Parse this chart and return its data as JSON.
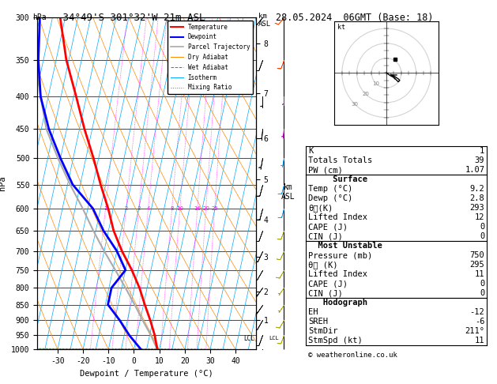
{
  "title_left": "-34°49'S 301°32'W 21m ASL",
  "title_right": "28.05.2024  06GMT (Base: 18)",
  "xlabel": "Dewpoint / Temperature (°C)",
  "ylabel_left": "hPa",
  "ylabel_km": "km\nASL",
  "bg_color": "#ffffff",
  "pressure_levels": [
    300,
    350,
    400,
    450,
    500,
    550,
    600,
    650,
    700,
    750,
    800,
    850,
    900,
    950,
    1000
  ],
  "temp_ticks": [
    -30,
    -20,
    -10,
    0,
    10,
    20,
    30,
    40
  ],
  "pressure_min": 300,
  "pressure_max": 1000,
  "isotherm_color": "#00aaff",
  "dry_adiabat_color": "#ff8800",
  "wet_adiabat_color": "#00bb00",
  "mixing_ratio_color": "#ff00ff",
  "temperature_color": "#ff0000",
  "dewpoint_color": "#0000ff",
  "parcel_color": "#aaaaaa",
  "temperature_data": {
    "pressure": [
      1000,
      950,
      900,
      850,
      800,
      750,
      700,
      650,
      600,
      550,
      500,
      450,
      400,
      350,
      300
    ],
    "temp": [
      9.2,
      7.0,
      4.0,
      0.5,
      -3.0,
      -7.5,
      -13.0,
      -18.0,
      -22.0,
      -27.0,
      -32.0,
      -38.0,
      -44.0,
      -51.0,
      -57.0
    ]
  },
  "dewpoint_data": {
    "pressure": [
      1000,
      950,
      900,
      850,
      800,
      750,
      700,
      650,
      600,
      550,
      500,
      450,
      400,
      350,
      300
    ],
    "temp": [
      2.8,
      -3.0,
      -8.0,
      -14.0,
      -14.0,
      -10.0,
      -15.0,
      -22.0,
      -28.0,
      -38.0,
      -45.0,
      -52.0,
      -58.0,
      -62.0,
      -65.0
    ]
  },
  "parcel_data": {
    "pressure": [
      1000,
      950,
      900,
      850,
      800,
      750,
      700,
      650,
      600,
      550,
      500,
      450,
      400,
      350,
      300
    ],
    "temp": [
      9.2,
      5.5,
      1.0,
      -3.5,
      -8.5,
      -14.0,
      -20.0,
      -26.0,
      -32.0,
      -39.0,
      -46.0,
      -53.0,
      -58.0,
      -63.0,
      -68.0
    ]
  },
  "lcl_pressure": 960,
  "mixing_ratio_lines": [
    1,
    2,
    3,
    4,
    8,
    10,
    16,
    20,
    25
  ],
  "mixing_ratio_labels": [
    "1",
    "2",
    "3",
    "4",
    "8",
    "10",
    "16",
    "20",
    "25"
  ],
  "km_ticks": [
    1,
    2,
    3,
    4,
    5,
    6,
    7,
    8
  ],
  "km_pressures": [
    900,
    810,
    715,
    625,
    540,
    465,
    395,
    330
  ],
  "wind_pressure": [
    1000,
    950,
    900,
    850,
    800,
    750,
    700,
    650,
    600,
    550,
    500,
    450,
    400,
    350,
    300
  ],
  "wind_speed_kt": [
    10,
    10,
    8,
    7,
    7,
    10,
    12,
    10,
    8,
    8,
    7,
    6,
    5,
    8,
    12
  ],
  "wind_dir_deg": [
    200,
    200,
    210,
    215,
    215,
    210,
    205,
    200,
    195,
    195,
    190,
    185,
    180,
    200,
    220
  ],
  "hodo_u": [
    0,
    3,
    5,
    7,
    8,
    9,
    8,
    5,
    3
  ],
  "hodo_v": [
    0,
    -2,
    -3,
    -5,
    -6,
    -5,
    -4,
    -2,
    -1
  ],
  "stats": {
    "K": 1,
    "Totals_Totals": 39,
    "PW_cm": 1.07,
    "Surface_Temp": 9.2,
    "Surface_Dewp": 2.8,
    "Surface_theta_e": 293,
    "Surface_LI": 12,
    "Surface_CAPE": 0,
    "Surface_CIN": 0,
    "MU_Pressure": 750,
    "MU_theta_e": 295,
    "MU_LI": 11,
    "MU_CAPE": 0,
    "MU_CIN": 0,
    "EH": -12,
    "SREH": -6,
    "StmDir": 211,
    "StmSpd_kt": 11
  },
  "skew": 1.0,
  "xlim_left": -38,
  "xlim_right": 48
}
